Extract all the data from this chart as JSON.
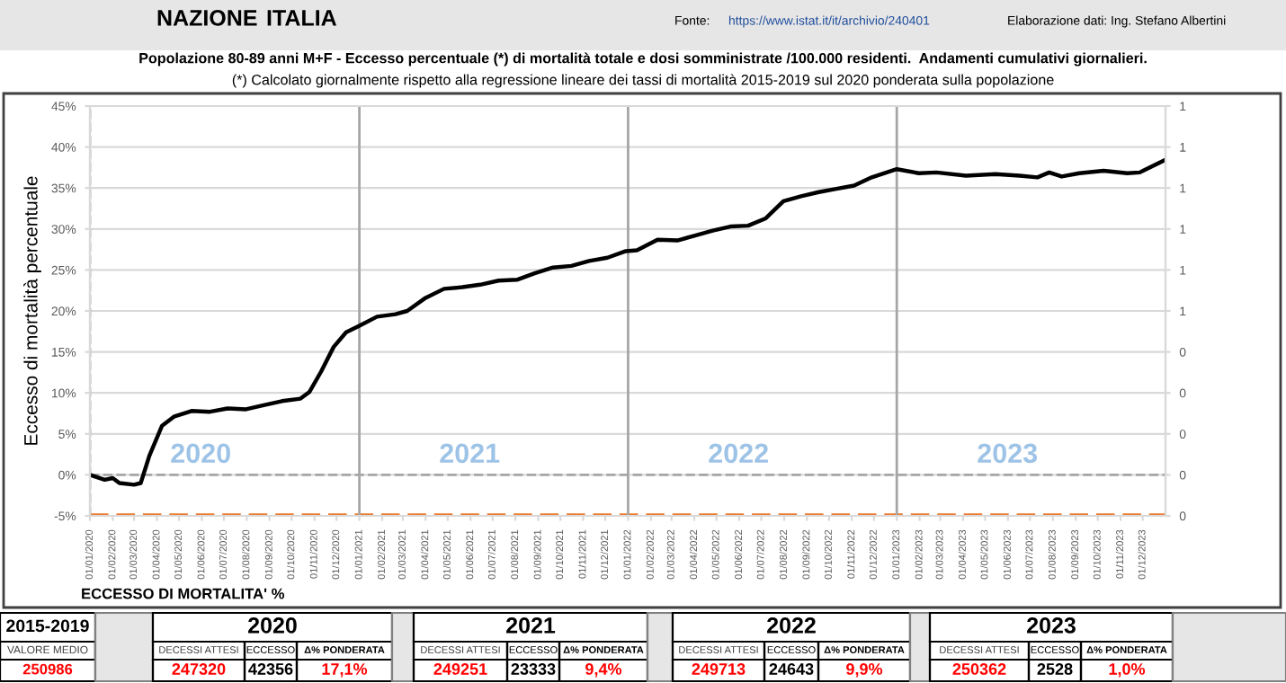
{
  "chart_data": {
    "type": "line",
    "title": "Popolazione 80-89 anni M+F - Eccesso percentuale (*) di mortalità totale e dosi somministrate /100.000 residenti.  Andamenti cumulativi giornalieri.",
    "subtitle": "(*) Calcolato giornalmente rispetto alla regressione lineare dei tassi di mortalità 2015-2019 sul 2020 ponderata sulla popolazione",
    "ylabel": "Eccesso di mortalità percentuale",
    "xlabel": "ECCESSO DI MORTALITA' %",
    "series": [
      {
        "color": "#000000",
        "x": [
          "2020-01-01",
          "2020-01-21",
          "2020-02-01",
          "2020-02-10",
          "2020-03-01",
          "2020-03-10",
          "2020-03-22",
          "2020-04-08",
          "2020-04-24",
          "2020-05-18",
          "2020-06-12",
          "2020-07-06",
          "2020-07-31",
          "2020-08-24",
          "2020-09-18",
          "2020-10-13",
          "2020-10-25",
          "2020-11-10",
          "2020-11-27",
          "2020-12-14",
          "2021-01-01",
          "2021-01-25",
          "2021-02-19",
          "2021-03-07",
          "2021-04-01",
          "2021-04-26",
          "2021-05-21",
          "2021-06-14",
          "2021-07-09",
          "2021-08-03",
          "2021-08-27",
          "2021-09-21",
          "2021-10-16",
          "2021-11-09",
          "2021-12-04",
          "2021-12-29",
          "2022-01-13",
          "2022-02-10",
          "2022-03-09",
          "2022-04-02",
          "2022-04-26",
          "2022-05-20",
          "2022-06-13",
          "2022-07-07",
          "2022-07-31",
          "2022-08-24",
          "2022-09-17",
          "2022-10-11",
          "2022-11-04",
          "2022-11-28",
          "2023-01-01",
          "2023-01-31",
          "2023-02-24",
          "2023-04-05",
          "2023-05-15",
          "2023-06-17",
          "2023-07-11",
          "2023-07-27",
          "2023-08-13",
          "2023-09-06",
          "2023-10-09",
          "2023-11-10",
          "2023-11-27",
          "2023-12-31"
        ],
        "values": [
          0,
          -0.6,
          -0.4,
          -1.0,
          -1.2,
          -1.0,
          2.4,
          6.0,
          7.1,
          7.8,
          7.7,
          8.1,
          8.0,
          8.5,
          9.0,
          9.3,
          10.1,
          12.6,
          15.6,
          17.4,
          18.2,
          19.3,
          19.6,
          20.0,
          21.6,
          22.7,
          22.9,
          23.2,
          23.7,
          23.8,
          24.6,
          25.3,
          25.5,
          26.1,
          26.5,
          27.3,
          27.4,
          28.7,
          28.6,
          29.2,
          29.8,
          30.3,
          30.4,
          31.3,
          33.4,
          34.0,
          34.5,
          34.9,
          35.3,
          36.3,
          37.3,
          36.8,
          36.9,
          36.5,
          36.7,
          36.5,
          36.3,
          36.9,
          36.4,
          36.8,
          37.1,
          36.8,
          36.9,
          38.4
        ]
      }
    ],
    "xlim": [
      "2020-01-01",
      "2024-01-01"
    ],
    "xticks": [
      {
        "value": "2020-01-01",
        "label": "01/01/2020"
      },
      {
        "value": "2020-02-01",
        "label": "01/02/2020"
      },
      {
        "value": "2020-03-01",
        "label": "01/03/2020"
      },
      {
        "value": "2020-04-01",
        "label": "01/04/2020"
      },
      {
        "value": "2020-05-01",
        "label": "01/05/2020"
      },
      {
        "value": "2020-06-01",
        "label": "01/06/2020"
      },
      {
        "value": "2020-07-01",
        "label": "01/07/2020"
      },
      {
        "value": "2020-08-01",
        "label": "01/08/2020"
      },
      {
        "value": "2020-09-01",
        "label": "01/09/2020"
      },
      {
        "value": "2020-10-01",
        "label": "01/10/2020"
      },
      {
        "value": "2020-11-01",
        "label": "01/11/2020"
      },
      {
        "value": "2020-12-01",
        "label": "01/12/2020"
      },
      {
        "value": "2021-01-01",
        "label": "01/01/2021"
      },
      {
        "value": "2021-02-01",
        "label": "01/02/2021"
      },
      {
        "value": "2021-03-01",
        "label": "01/03/2021"
      },
      {
        "value": "2021-04-01",
        "label": "01/04/2021"
      },
      {
        "value": "2021-05-01",
        "label": "01/05/2021"
      },
      {
        "value": "2021-06-01",
        "label": "01/06/2021"
      },
      {
        "value": "2021-07-01",
        "label": "01/07/2021"
      },
      {
        "value": "2021-08-01",
        "label": "01/08/2021"
      },
      {
        "value": "2021-09-01",
        "label": "01/09/2021"
      },
      {
        "value": "2021-10-01",
        "label": "01/10/2021"
      },
      {
        "value": "2021-11-01",
        "label": "01/11/2021"
      },
      {
        "value": "2021-12-01",
        "label": "01/12/2021"
      },
      {
        "value": "2022-01-01",
        "label": "01/01/2022"
      },
      {
        "value": "2022-02-01",
        "label": "01/02/2022"
      },
      {
        "value": "2022-03-01",
        "label": "01/03/2022"
      },
      {
        "value": "2022-04-01",
        "label": "01/04/2022"
      },
      {
        "value": "2022-05-01",
        "label": "01/05/2022"
      },
      {
        "value": "2022-06-01",
        "label": "01/06/2022"
      },
      {
        "value": "2022-07-01",
        "label": "01/07/2022"
      },
      {
        "value": "2022-08-01",
        "label": "01/08/2022"
      },
      {
        "value": "2022-09-01",
        "label": "01/09/2022"
      },
      {
        "value": "2022-10-01",
        "label": "01/10/2022"
      },
      {
        "value": "2022-11-01",
        "label": "01/11/2022"
      },
      {
        "value": "2022-12-01",
        "label": "01/12/2022"
      },
      {
        "value": "2023-01-01",
        "label": "01/01/2023"
      },
      {
        "value": "2023-02-01",
        "label": "01/02/2023"
      },
      {
        "value": "2023-03-01",
        "label": "01/03/2023"
      },
      {
        "value": "2023-04-01",
        "label": "01/04/2023"
      },
      {
        "value": "2023-05-01",
        "label": "01/05/2023"
      },
      {
        "value": "2023-06-01",
        "label": "01/06/2023"
      },
      {
        "value": "2023-07-01",
        "label": "01/07/2023"
      },
      {
        "value": "2023-08-01",
        "label": "01/08/2023"
      },
      {
        "value": "2023-09-01",
        "label": "01/09/2023"
      },
      {
        "value": "2023-10-01",
        "label": "01/10/2023"
      },
      {
        "value": "2023-11-01",
        "label": "01/11/2023"
      },
      {
        "value": "2023-12-01",
        "label": "01/12/2023"
      }
    ],
    "ylim": [
      -5,
      45
    ],
    "yticks": [
      {
        "value": -5,
        "label": "-5%"
      },
      {
        "value": 0,
        "label": "0%"
      },
      {
        "value": 5,
        "label": "5%"
      },
      {
        "value": 10,
        "label": "10%"
      },
      {
        "value": 15,
        "label": "15%"
      },
      {
        "value": 20,
        "label": "20%"
      },
      {
        "value": 25,
        "label": "25%"
      },
      {
        "value": 30,
        "label": "30%"
      },
      {
        "value": 35,
        "label": "35%"
      },
      {
        "value": 40,
        "label": "40%"
      },
      {
        "value": 45,
        "label": "45%"
      }
    ],
    "y2lim": [
      0,
      1
    ],
    "y2ticks": [
      0,
      {
        "value": 0.1,
        "label": "0"
      },
      {
        "value": 0.2,
        "label": "0"
      },
      {
        "value": 0.3,
        "label": "0"
      },
      {
        "value": 0.4,
        "label": "0"
      },
      {
        "value": 0.5,
        "label": "1"
      },
      {
        "value": 0.6,
        "label": "1"
      },
      {
        "value": 0.7,
        "label": "1"
      },
      {
        "value": 0.8,
        "label": "1"
      },
      {
        "value": 0.9,
        "label": "1"
      },
      1
    ],
    "grid": "y",
    "marker": "none",
    "line_style": "solid",
    "ref_lines": [
      {
        "axis": "y",
        "value": -5,
        "color": "#ed7d31",
        "line_style": "dashed"
      },
      {
        "axis": "y",
        "value": 0,
        "color": "#a6a6a6",
        "line_style": "dashed"
      },
      {
        "axis": "x",
        "value": "2020-01-01",
        "color": "#a6a6a6",
        "line_style": "dashed"
      },
      {
        "axis": "x",
        "value": "2021-01-01",
        "color": "#a6a6a6",
        "line_style": "solid"
      },
      {
        "axis": "x",
        "value": "2022-01-01",
        "color": "#a6a6a6",
        "line_style": "solid"
      },
      {
        "axis": "x",
        "value": "2023-01-01",
        "color": "#a6a6a6",
        "line_style": "solid"
      }
    ],
    "annotations": [
      "NAZIONE",
      "ITALIA",
      "Fonte:",
      "https://www.istat.it/it/archivio/240401",
      "Elaborazione dati: Ing. Stefano Albertini",
      "2020",
      "2021",
      "2022",
      "2023",
      "2015-2019",
      "VALORE MEDIO",
      "250986",
      "2020",
      "DECESSI ATTESI",
      "ECCESSO",
      "Δ% PONDERATA",
      "247320",
      "42356",
      "17,1%",
      "2021",
      "DECESSI ATTESI",
      "ECCESSO",
      "Δ% PONDERATA",
      "249251",
      "23333",
      "9,4%",
      "2022",
      "DECESSI ATTESI",
      "ECCESSO",
      "Δ% PONDERATA",
      "249713",
      "24643",
      "9,9%",
      "2023",
      "DECESSI ATTESI",
      "ECCESSO",
      "Δ% PONDERATA",
      "250362",
      "2528",
      "1,0%"
    ]
  }
}
